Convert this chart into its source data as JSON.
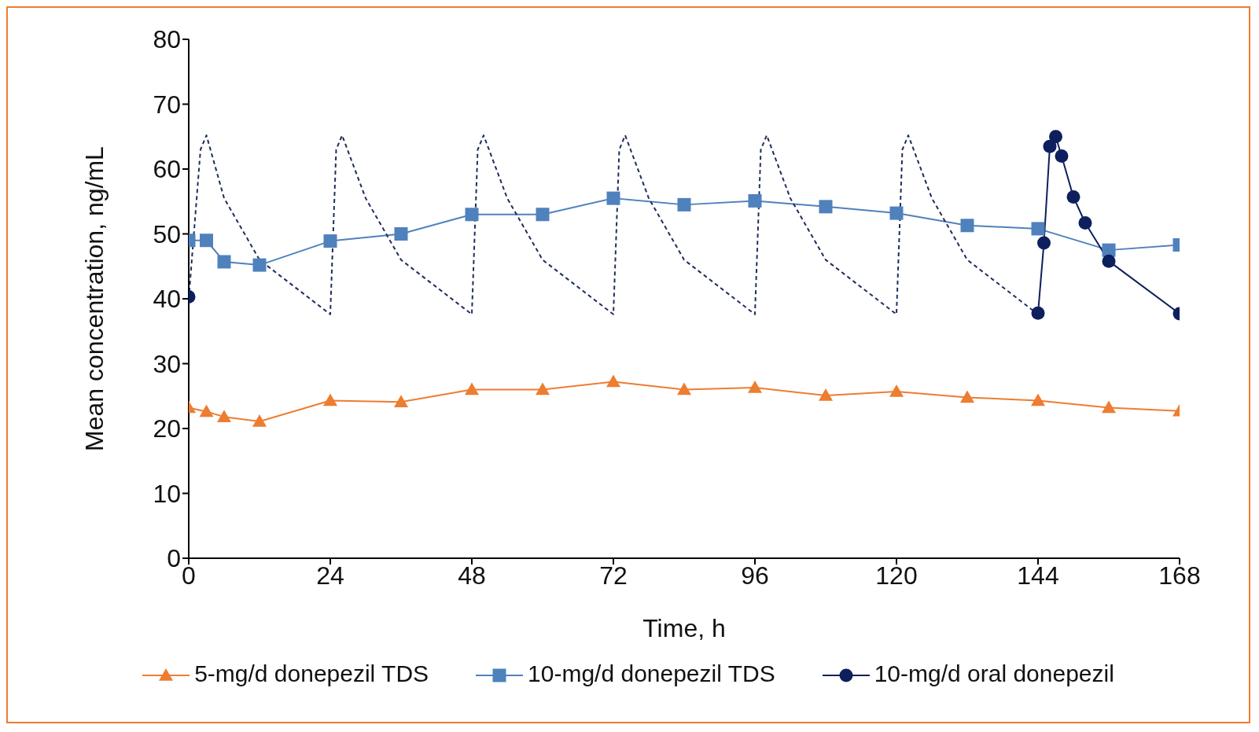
{
  "chart_data": {
    "type": "line",
    "xlabel": "Time, h",
    "ylabel": "Mean concentration, ng/mL",
    "xlim": [
      0,
      168
    ],
    "xticks": [
      0,
      24,
      48,
      72,
      96,
      120,
      144,
      168
    ],
    "ylim": [
      0,
      80
    ],
    "yticks": [
      0,
      10,
      20,
      30,
      40,
      50,
      60,
      70,
      80
    ],
    "grid": false,
    "legend": "bottom",
    "series": [
      {
        "name": "5-mg/d donepezil TDS",
        "color": "#ed7d31",
        "marker": "triangle",
        "x": [
          0,
          3,
          6,
          12,
          24,
          36,
          48,
          60,
          72,
          84,
          96,
          108,
          120,
          132,
          144,
          156,
          168
        ],
        "values": [
          23.2,
          22.6,
          21.8,
          21.1,
          24.3,
          24.1,
          26,
          26,
          27.2,
          26,
          26.3,
          25.1,
          25.7,
          24.8,
          24.3,
          23.2,
          22.7
        ]
      },
      {
        "name": "10-mg/d donepezil TDS",
        "color": "#4f81bd",
        "marker": "square",
        "x": [
          0,
          3,
          6,
          12,
          24,
          36,
          48,
          60,
          72,
          84,
          96,
          108,
          120,
          132,
          144,
          156,
          168
        ],
        "values": [
          49,
          49,
          45.7,
          45.2,
          48.9,
          50,
          53,
          53,
          55.5,
          54.5,
          55.1,
          54.2,
          53.2,
          51.3,
          50.8,
          47.5,
          48.3
        ]
      },
      {
        "color": "#1f2d5c",
        "marker": "none",
        "line_style": "dashed",
        "x": [
          0,
          2,
          3,
          6,
          12,
          24,
          25,
          26,
          30,
          36,
          48,
          49,
          50,
          54,
          60,
          72,
          73,
          74,
          78,
          84,
          96,
          97,
          98,
          102,
          108,
          120,
          121,
          122,
          126,
          132,
          144
        ],
        "values": [
          40,
          63,
          65.2,
          55.5,
          46,
          37.6,
          63,
          65.2,
          55.5,
          46,
          37.6,
          63,
          65.2,
          55.5,
          46,
          37.6,
          63,
          65.2,
          55.5,
          46,
          37.6,
          63,
          65.2,
          55.5,
          46,
          37.6,
          63,
          65.2,
          55.5,
          46,
          37.6
        ]
      },
      {
        "name": "10-mg/d oral donepezil",
        "color": "#0d1f5c",
        "marker": "circle",
        "x": [
          0,
          72,
          144,
          145,
          146,
          147,
          148,
          150,
          152,
          156,
          168
        ],
        "values": [
          40.3,
          null,
          37.8,
          48.6,
          63.5,
          65,
          62,
          55.7,
          51.7,
          45.8,
          37.7
        ]
      }
    ]
  }
}
